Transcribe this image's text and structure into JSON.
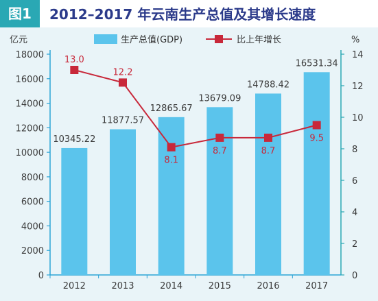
{
  "header": {
    "figure_label": "图1",
    "title": "2012–2017 年云南生产总值及其增长速度"
  },
  "colors": {
    "header_bg": "#ffffff",
    "label_box": "#2aa8b4",
    "bar": "#5bc4ec",
    "line": "#c8283a",
    "axis_left": "#2aa3d6",
    "axis_right": "#2aa8b4",
    "title_text": "#2b3a8a"
  },
  "chart_data": {
    "type": "bar",
    "categories": [
      "2012",
      "2013",
      "2014",
      "2015",
      "2016",
      "2017"
    ],
    "left_axis": {
      "unit": "亿元",
      "ylim": [
        0,
        18000
      ],
      "ticks": [
        0,
        2000,
        4000,
        6000,
        8000,
        10000,
        12000,
        14000,
        16000,
        18000
      ]
    },
    "right_axis": {
      "unit": "%",
      "ylim": [
        0,
        14
      ],
      "ticks": [
        0,
        2,
        4,
        6,
        8,
        10,
        12,
        14
      ]
    },
    "series": [
      {
        "name": "生产总值(GDP)",
        "type": "bar",
        "axis": "left",
        "values": [
          10345.22,
          11877.57,
          12865.67,
          13679.09,
          14788.42,
          16531.34
        ],
        "labels": [
          "10345.22",
          "11877.57",
          "12865.67",
          "13679.09",
          "14788.42",
          "16531.34"
        ]
      },
      {
        "name": "比上年增长",
        "type": "line",
        "axis": "right",
        "values": [
          13.0,
          12.2,
          8.1,
          8.7,
          8.7,
          9.5
        ],
        "labels": [
          "13.0",
          "12.2",
          "8.1",
          "8.7",
          "8.7",
          "9.5"
        ]
      }
    ],
    "legend_position": "top"
  }
}
